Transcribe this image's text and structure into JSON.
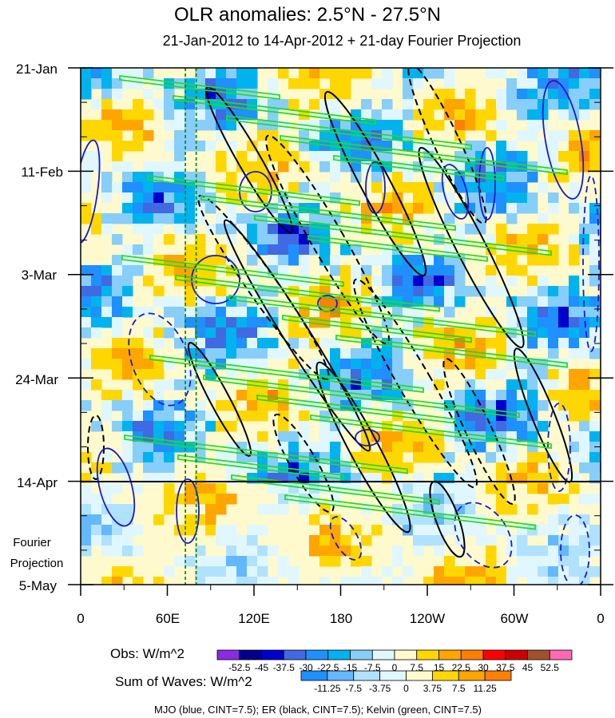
{
  "chart_data": {
    "type": "heatmap",
    "title": "OLR anomalies: 2.5°N - 27.5°N",
    "subtitle": "21-Jan-2012 to 14-Apr-2012 + 21-day Fourier Projection",
    "x_tick_labels": [
      "0",
      "60E",
      "120E",
      "180",
      "120W",
      "60W",
      "0"
    ],
    "x_range_deg_east": [
      0,
      360
    ],
    "x_tick_values_deg_east": [
      0,
      60,
      120,
      180,
      240,
      300,
      360
    ],
    "y_tick_labels": [
      "21-Jan",
      "11-Feb",
      "3-Mar",
      "24-Mar",
      "14-Apr",
      "5-May"
    ],
    "y_range_days": [
      0,
      105
    ],
    "y_tick_days": [
      0,
      21,
      42,
      63,
      84,
      105
    ],
    "observation_end_day": 84,
    "observation_end_label": "14-Apr",
    "projection_label_line1": "Fourier",
    "projection_label_line2": "Projection",
    "reference_longitudes_deg_east": [
      72.5,
      80
    ],
    "obs_colorbar": {
      "label": "Obs: W/m^2",
      "levels": [
        "-52.5",
        "-45",
        "-37.5",
        "-30",
        "-22.5",
        "-15",
        "-7.5",
        "0",
        "7.5",
        "15",
        "22.5",
        "30",
        "37.5",
        "45",
        "52.5"
      ],
      "colors": [
        "#8a2be2",
        "#00008b",
        "#0000cd",
        "#4169e1",
        "#1e90ff",
        "#00b2ee",
        "#87cefa",
        "#e0f7ff",
        "#fffacd",
        "#ffd700",
        "#ffa500",
        "#ff7f00",
        "#ff0000",
        "#cd0000",
        "#a0522d",
        "#ff69b4"
      ]
    },
    "waves_colorbar": {
      "label": "Sum of Waves: W/m^2",
      "levels": [
        "-11.25",
        "-7.5",
        "-3.75",
        "0",
        "3.75",
        "7.5",
        "11.25"
      ],
      "colors": [
        "#1e90ff",
        "#63b8ff",
        "#b0e2ff",
        "#e0f7ff",
        "#fffacd",
        "#ffd700",
        "#ffa500",
        "#ff7f00"
      ]
    },
    "contour_legend": "MJO (blue, CINT=7.5); ER (black, CINT=7.5); Kelvin (green, CINT=7.5)",
    "series": [
      {
        "name": "MJO",
        "color": "#1a1acd",
        "cint": 7.5
      },
      {
        "name": "ER",
        "color": "#000000",
        "cint": 7.5
      },
      {
        "name": "Kelvin",
        "color": "#22dd22",
        "cint": 7.5
      }
    ],
    "grid": false
  }
}
